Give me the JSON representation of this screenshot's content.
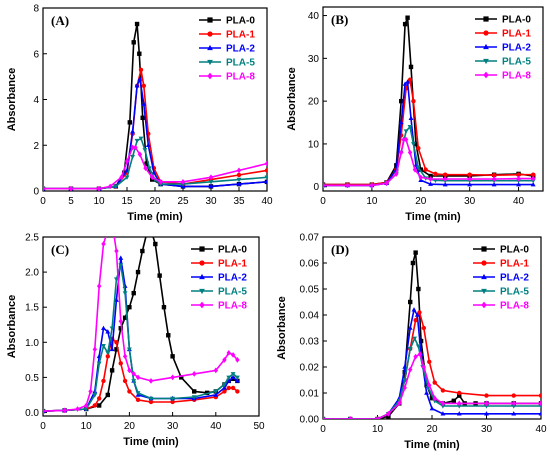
{
  "series_colors": {
    "PLA-0": "#000000",
    "PLA-1": "#ff0000",
    "PLA-2": "#0000ff",
    "PLA-5": "#008080",
    "PLA-8": "#ff00ff"
  },
  "chart_data": [
    {
      "type": "line",
      "panel": "(A)",
      "xlabel": "Time (min)",
      "ylabel": "Absorbance",
      "xlim": [
        0,
        40
      ],
      "ylim": [
        0,
        8
      ],
      "xticks": [
        0,
        5,
        10,
        15,
        20,
        25,
        30,
        35,
        40
      ],
      "yticks": [
        0,
        2,
        4,
        6,
        8
      ],
      "legend": "top-right",
      "series": [
        {
          "name": "PLA-0",
          "x": [
            0,
            5,
            10,
            13,
            14.5,
            15.5,
            16.2,
            16.8,
            17.2,
            17.8,
            18.5,
            19.5,
            21,
            25,
            30,
            35,
            40
          ],
          "y": [
            0.1,
            0.1,
            0.1,
            0.2,
            0.8,
            3.0,
            6.5,
            7.3,
            6.0,
            3.2,
            1.2,
            0.5,
            0.3,
            0.2,
            0.2,
            0.3,
            0.4
          ]
        },
        {
          "name": "PLA-1",
          "x": [
            0,
            5,
            10,
            13,
            15,
            16,
            16.8,
            17.5,
            18,
            18.8,
            19.8,
            21,
            25,
            30,
            35,
            40
          ],
          "y": [
            0.1,
            0.1,
            0.1,
            0.2,
            0.8,
            2.5,
            4.6,
            5.3,
            4.6,
            2.5,
            1.0,
            0.4,
            0.3,
            0.5,
            0.7,
            0.9
          ]
        },
        {
          "name": "PLA-2",
          "x": [
            0,
            5,
            10,
            13,
            15,
            16,
            16.8,
            17.3,
            18,
            18.8,
            19.8,
            21,
            25,
            30,
            35,
            40
          ],
          "y": [
            0.1,
            0.1,
            0.1,
            0.2,
            0.9,
            2.6,
            4.6,
            4.9,
            3.8,
            2.0,
            0.8,
            0.3,
            0.2,
            0.2,
            0.3,
            0.4
          ]
        },
        {
          "name": "PLA-5",
          "x": [
            0,
            5,
            10,
            13,
            15,
            16,
            16.8,
            17.5,
            18.2,
            19,
            20,
            21,
            25,
            30,
            35,
            40
          ],
          "y": [
            0.1,
            0.1,
            0.1,
            0.2,
            0.6,
            1.5,
            2.2,
            2.3,
            1.8,
            1.0,
            0.5,
            0.3,
            0.3,
            0.4,
            0.5,
            0.6
          ]
        },
        {
          "name": "PLA-8",
          "x": [
            0,
            5,
            10,
            12,
            14,
            15,
            16,
            16.5,
            17.3,
            18.3,
            19.5,
            21,
            25,
            30,
            35,
            40
          ],
          "y": [
            0.1,
            0.1,
            0.1,
            0.2,
            0.6,
            1.3,
            1.9,
            1.9,
            1.6,
            1.0,
            0.6,
            0.4,
            0.4,
            0.6,
            0.9,
            1.2
          ]
        }
      ]
    },
    {
      "type": "line",
      "panel": "(B)",
      "xlabel": "Time (min)",
      "ylabel": "Absorbance",
      "xlim": [
        0,
        45
      ],
      "ylim": [
        -1,
        42
      ],
      "xticks": [
        0,
        10,
        20,
        30,
        40
      ],
      "yticks": [
        0,
        10,
        20,
        30,
        40
      ],
      "legend": "top-right",
      "series": [
        {
          "name": "PLA-0",
          "x": [
            0,
            5,
            10,
            13,
            15,
            16,
            16.8,
            17.3,
            18,
            19,
            20,
            22,
            25,
            30,
            35,
            40,
            43
          ],
          "y": [
            0.5,
            0.5,
            0.5,
            1.0,
            5.0,
            20.0,
            38.0,
            39.5,
            28.0,
            10.0,
            4.0,
            2.5,
            2.5,
            2.5,
            2.8,
            3.0,
            2.5
          ]
        },
        {
          "name": "PLA-1",
          "x": [
            0,
            5,
            10,
            13,
            15,
            16,
            17,
            17.8,
            18.5,
            19.5,
            21,
            23,
            25,
            30,
            35,
            40,
            43
          ],
          "y": [
            0.5,
            0.5,
            0.5,
            1.0,
            4.0,
            12.0,
            23.0,
            25.0,
            20.0,
            9.0,
            4.0,
            3.0,
            2.8,
            2.8,
            2.7,
            2.8,
            2.8
          ]
        },
        {
          "name": "PLA-2",
          "x": [
            0,
            5,
            10,
            13,
            15,
            16,
            16.8,
            17.3,
            18,
            19,
            20,
            22,
            25,
            30,
            35,
            40,
            43
          ],
          "y": [
            0.3,
            0.3,
            0.3,
            0.8,
            4.0,
            15.0,
            24.0,
            24.5,
            16.0,
            5.0,
            1.5,
            0.6,
            0.5,
            0.5,
            0.5,
            0.5,
            0.5
          ]
        },
        {
          "name": "PLA-5",
          "x": [
            0,
            5,
            10,
            13,
            15,
            16,
            17,
            17.8,
            18.5,
            19.5,
            21,
            23,
            25,
            30,
            35,
            40,
            43
          ],
          "y": [
            0.3,
            0.3,
            0.3,
            0.8,
            3.0,
            8.0,
            13.0,
            14.0,
            10.0,
            4.5,
            2.0,
            1.5,
            1.4,
            1.4,
            1.4,
            1.4,
            1.4
          ]
        },
        {
          "name": "PLA-8",
          "x": [
            0,
            5,
            10,
            13,
            15,
            16,
            16.5,
            17,
            17.8,
            18.8,
            20,
            22,
            25,
            30,
            35,
            40,
            43
          ],
          "y": [
            0.3,
            0.3,
            0.3,
            0.8,
            3.0,
            8.0,
            11.0,
            11.0,
            8.0,
            4.0,
            2.2,
            1.8,
            1.8,
            1.8,
            1.8,
            1.9,
            1.9
          ]
        }
      ]
    },
    {
      "type": "line",
      "panel": "(C)",
      "xlabel": "Time (min)",
      "ylabel": "Absorbance",
      "xlim": [
        0,
        50
      ],
      "ylim": [
        -0.05,
        2.5
      ],
      "xticks": [
        0,
        10,
        20,
        30,
        40,
        50
      ],
      "yticks": [
        0.0,
        0.5,
        1.0,
        1.5,
        2.0,
        2.5
      ],
      "ytick_labels": [
        "0.0",
        "0.5",
        "1.0",
        "1.5",
        "2.0",
        "2.5"
      ],
      "legend": "top-right",
      "series": [
        {
          "name": "PLA-0",
          "x": [
            0,
            5,
            10,
            13,
            15,
            16,
            17,
            18,
            19,
            20,
            21,
            22,
            23,
            24,
            25,
            26,
            27,
            28,
            29,
            30,
            32,
            35,
            38,
            40,
            42,
            43,
            44,
            45
          ],
          "y": [
            0.02,
            0.03,
            0.05,
            0.1,
            0.25,
            0.6,
            0.9,
            1.2,
            1.35,
            1.5,
            1.7,
            2.0,
            2.3,
            2.55,
            2.6,
            2.4,
            1.95,
            1.5,
            1.1,
            0.8,
            0.5,
            0.3,
            0.28,
            0.3,
            0.4,
            0.45,
            0.48,
            0.45
          ]
        },
        {
          "name": "PLA-1",
          "x": [
            0,
            5,
            10,
            12,
            13,
            14,
            15,
            16,
            17,
            18,
            19,
            20,
            22,
            25,
            30,
            35,
            40,
            42,
            43,
            44,
            45
          ],
          "y": [
            0.02,
            0.03,
            0.05,
            0.1,
            0.2,
            0.45,
            0.8,
            1.05,
            1.0,
            0.7,
            0.45,
            0.3,
            0.18,
            0.15,
            0.15,
            0.18,
            0.22,
            0.3,
            0.35,
            0.35,
            0.3
          ]
        },
        {
          "name": "PLA-2",
          "x": [
            0,
            5,
            10,
            12,
            13,
            14,
            15,
            16,
            17,
            18,
            19,
            20,
            21,
            22,
            25,
            30,
            35,
            40,
            42,
            43,
            44,
            45
          ],
          "y": [
            0.02,
            0.03,
            0.05,
            0.3,
            0.8,
            1.2,
            1.15,
            0.9,
            1.6,
            2.2,
            1.8,
            0.9,
            0.45,
            0.25,
            0.2,
            0.2,
            0.2,
            0.25,
            0.35,
            0.45,
            0.5,
            0.45
          ]
        },
        {
          "name": "PLA-5",
          "x": [
            0,
            5,
            10,
            12,
            13,
            14,
            15,
            16,
            17,
            18,
            19,
            20,
            21,
            22,
            25,
            30,
            35,
            40,
            42,
            43,
            44,
            45
          ],
          "y": [
            0.02,
            0.03,
            0.05,
            0.25,
            0.7,
            0.95,
            0.85,
            1.2,
            1.9,
            2.1,
            1.7,
            0.9,
            0.45,
            0.28,
            0.2,
            0.2,
            0.22,
            0.3,
            0.4,
            0.5,
            0.55,
            0.5
          ]
        },
        {
          "name": "PLA-8",
          "x": [
            0,
            5,
            8,
            10,
            11,
            12,
            13,
            14,
            15,
            16,
            17,
            18,
            19,
            20,
            21,
            22,
            25,
            30,
            35,
            40,
            42,
            43,
            44,
            45
          ],
          "y": [
            0.02,
            0.03,
            0.05,
            0.1,
            0.3,
            0.9,
            1.8,
            2.4,
            2.6,
            2.7,
            2.3,
            1.3,
            0.8,
            0.6,
            0.55,
            0.5,
            0.45,
            0.5,
            0.55,
            0.6,
            0.75,
            0.85,
            0.82,
            0.75
          ]
        }
      ]
    },
    {
      "type": "line",
      "panel": "(D)",
      "xlabel": "Time (min)",
      "ylabel": "Absorbance",
      "xlim": [
        0,
        40
      ],
      "ylim": [
        0,
        0.07
      ],
      "xticks": [
        0,
        10,
        20,
        30,
        40
      ],
      "yticks": [
        0.0,
        0.01,
        0.02,
        0.03,
        0.04,
        0.05,
        0.06,
        0.07
      ],
      "ytick_labels": [
        "0.00",
        "0.01",
        "0.02",
        "0.03",
        "0.04",
        "0.05",
        "0.06",
        "0.07"
      ],
      "legend": "top-right",
      "series": [
        {
          "name": "PLA-0",
          "x": [
            0,
            5,
            10,
            12,
            14,
            15,
            16,
            16.5,
            17,
            17.5,
            18,
            19,
            20,
            22,
            24,
            25,
            26,
            28,
            30,
            35,
            40
          ],
          "y": [
            0.0,
            0.0,
            0.0,
            0.001,
            0.006,
            0.018,
            0.045,
            0.06,
            0.064,
            0.05,
            0.03,
            0.013,
            0.008,
            0.006,
            0.007,
            0.009,
            0.006,
            0.006,
            0.006,
            0.006,
            0.006
          ]
        },
        {
          "name": "PLA-1",
          "x": [
            0,
            5,
            10,
            12,
            14,
            15,
            16,
            17,
            17.7,
            18.5,
            19.5,
            20.5,
            22,
            25,
            30,
            35,
            40
          ],
          "y": [
            0.0,
            0.0,
            0.0,
            0.002,
            0.007,
            0.015,
            0.027,
            0.038,
            0.041,
            0.035,
            0.022,
            0.014,
            0.011,
            0.01,
            0.009,
            0.009,
            0.009
          ]
        },
        {
          "name": "PLA-2",
          "x": [
            0,
            5,
            10,
            12,
            14,
            15,
            16,
            16.7,
            17.3,
            18,
            19,
            20,
            22,
            25,
            30,
            35,
            40
          ],
          "y": [
            0.0,
            0.0,
            0.0,
            0.002,
            0.008,
            0.02,
            0.035,
            0.042,
            0.04,
            0.025,
            0.01,
            0.004,
            0.002,
            0.002,
            0.002,
            0.002,
            0.002
          ]
        },
        {
          "name": "PLA-5",
          "x": [
            0,
            5,
            10,
            12,
            14,
            15,
            16,
            16.8,
            17.5,
            18.3,
            19.3,
            20.5,
            22,
            25,
            30,
            35,
            40
          ],
          "y": [
            0.0,
            0.0,
            0.0,
            0.002,
            0.007,
            0.015,
            0.027,
            0.031,
            0.028,
            0.02,
            0.012,
            0.007,
            0.005,
            0.005,
            0.005,
            0.005,
            0.005
          ]
        },
        {
          "name": "PLA-8",
          "x": [
            0,
            5,
            10,
            12,
            14,
            15,
            16,
            17,
            17.8,
            18.5,
            19.5,
            20.5,
            22,
            25,
            30,
            35,
            40
          ],
          "y": [
            0.0,
            0.0,
            0.0,
            0.002,
            0.006,
            0.012,
            0.019,
            0.024,
            0.025,
            0.02,
            0.013,
            0.008,
            0.006,
            0.006,
            0.006,
            0.006,
            0.006
          ]
        }
      ]
    }
  ]
}
